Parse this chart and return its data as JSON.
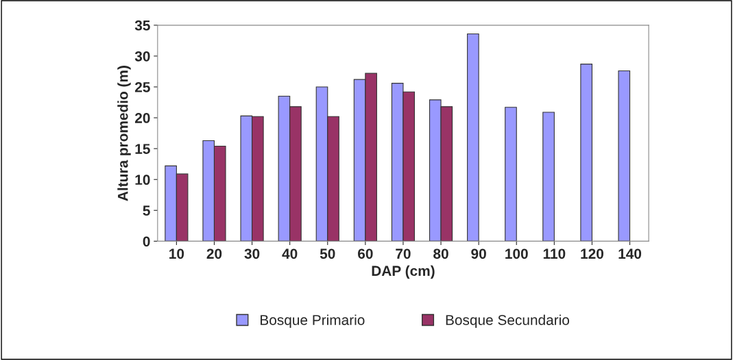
{
  "chart_data": {
    "type": "bar",
    "xlabel": "DAP (cm)",
    "ylabel": "Altura promedio (m)",
    "categories": [
      "10",
      "20",
      "30",
      "40",
      "50",
      "60",
      "70",
      "80",
      "90",
      "100",
      "110",
      "120",
      "140"
    ],
    "series": [
      {
        "name": "Bosque Primario",
        "color": "#9999ff",
        "values": [
          12.2,
          16.3,
          20.3,
          23.5,
          25.0,
          26.2,
          25.6,
          22.9,
          33.6,
          21.7,
          20.9,
          28.7,
          27.6
        ]
      },
      {
        "name": "Bosque Secundario",
        "color": "#993366",
        "values": [
          10.9,
          15.4,
          20.2,
          21.8,
          20.2,
          27.2,
          24.2,
          21.8,
          null,
          null,
          null,
          null,
          null
        ]
      }
    ],
    "ylim": [
      0,
      35
    ],
    "yticks": [
      0,
      5,
      10,
      15,
      20,
      25,
      30,
      35
    ],
    "grid": false,
    "legend": "bottom"
  }
}
